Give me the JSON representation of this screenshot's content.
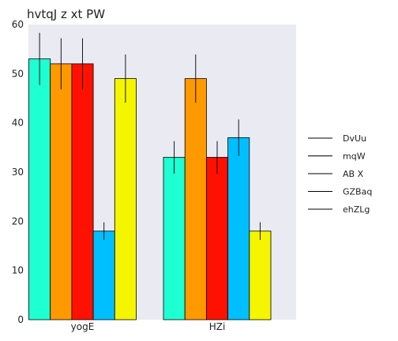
{
  "chart_data": {
    "type": "bar",
    "title": "hvtqJ z xt PW",
    "xlabel": "",
    "ylabel": "",
    "categories": [
      "yogE",
      "HZi"
    ],
    "ylim": [
      0,
      60
    ],
    "yticks": [
      0,
      10,
      20,
      30,
      40,
      50,
      60
    ],
    "grid": false,
    "legend_position": "right",
    "error_bars": true,
    "series": [
      {
        "name": "DvUu",
        "color": "#1effd2",
        "values": [
          53,
          33
        ],
        "errors": [
          5.3,
          3.3
        ]
      },
      {
        "name": "mqW",
        "color": "#ff9900",
        "values": [
          52,
          49
        ],
        "errors": [
          5.2,
          4.9
        ]
      },
      {
        "name": "AB X",
        "color": "#ff1100",
        "values": [
          52,
          33
        ],
        "errors": [
          5.2,
          3.3
        ]
      },
      {
        "name": "GZBaq",
        "color": "#00bfff",
        "values": [
          18,
          37
        ],
        "errors": [
          1.8,
          3.7
        ]
      },
      {
        "name": "ehZLg",
        "color": "#f5f500",
        "values": [
          49,
          18
        ],
        "errors": [
          4.9,
          1.8
        ]
      }
    ],
    "plot_background": "#eaeaf2"
  }
}
